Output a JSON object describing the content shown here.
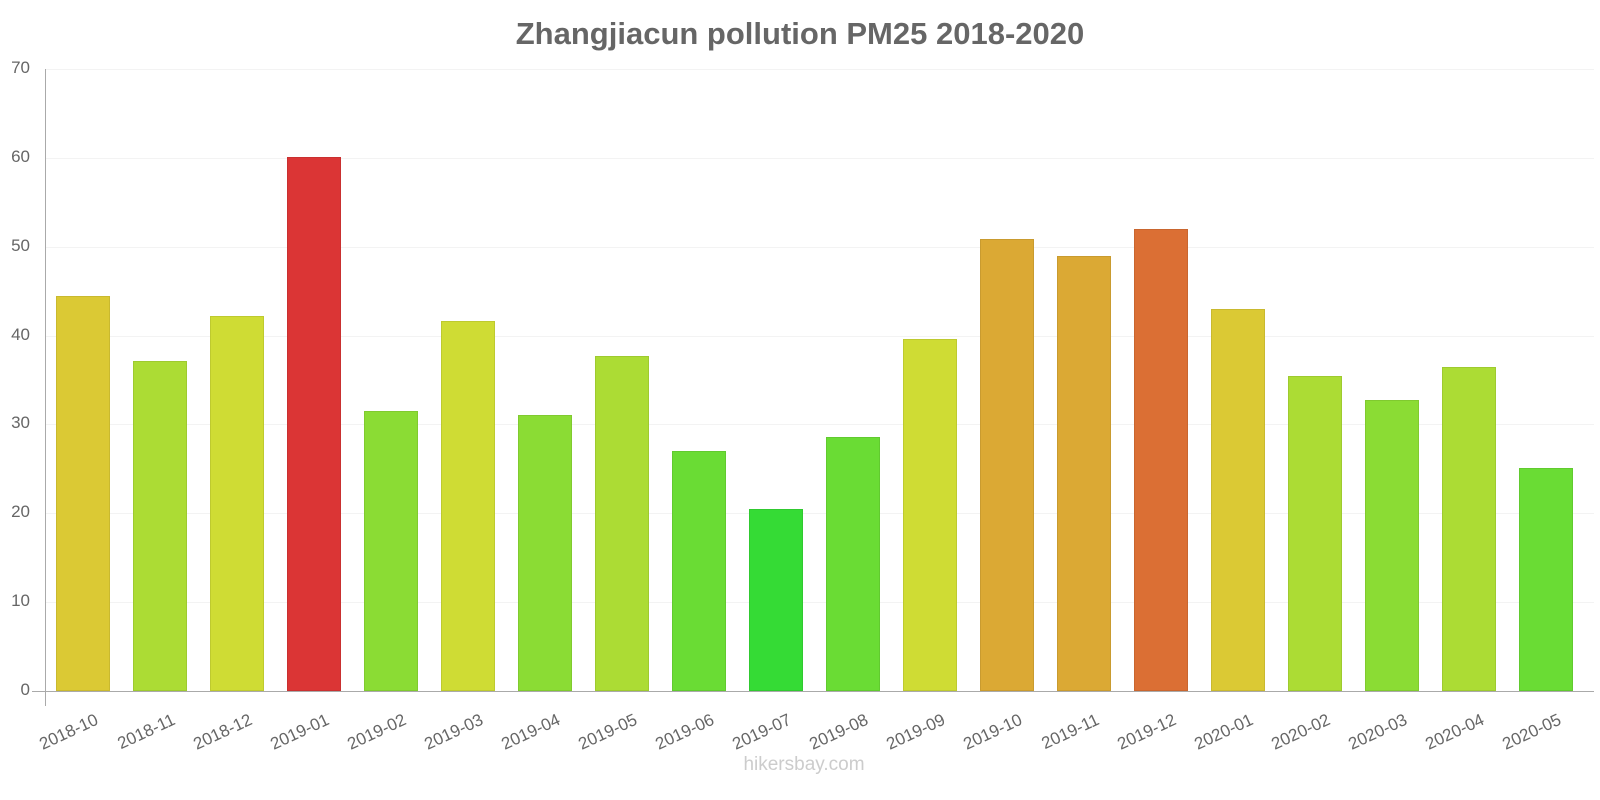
{
  "chart_data": {
    "type": "bar",
    "title": "Zhangjiacun pollution PM25 2018-2020",
    "xlabel": "",
    "ylabel": "",
    "ylim": [
      0,
      70
    ],
    "yticks": [
      0,
      10,
      20,
      30,
      40,
      50,
      60,
      70
    ],
    "grid": true,
    "legend": null,
    "categories": [
      "2018-10",
      "2018-11",
      "2018-12",
      "2019-01",
      "2019-02",
      "2019-03",
      "2019-04",
      "2019-05",
      "2019-06",
      "2019-07",
      "2019-08",
      "2019-09",
      "2019-10",
      "2019-11",
      "2019-12",
      "2020-01",
      "2020-02",
      "2020-03",
      "2020-04",
      "2020-05"
    ],
    "values": [
      44.5,
      37.1,
      42.2,
      60.1,
      31.5,
      41.6,
      31.1,
      37.7,
      27.0,
      20.5,
      28.6,
      39.6,
      50.9,
      49.0,
      52.0,
      43.0,
      35.4,
      32.7,
      36.5,
      25.1
    ],
    "colors": [
      "#dbc934",
      "#acdc34",
      "#cfdc34",
      "#db3535",
      "#8bdc34",
      "#cfdc34",
      "#8bdc34",
      "#acdc34",
      "#6adc34",
      "#35db35",
      "#6adc34",
      "#cfdc34",
      "#dba934",
      "#dba934",
      "#db6f34",
      "#dbc934",
      "#acdc34",
      "#8bdc34",
      "#acdc34",
      "#6adc34"
    ]
  },
  "footer": {
    "watermark": "hikersbay.com"
  }
}
